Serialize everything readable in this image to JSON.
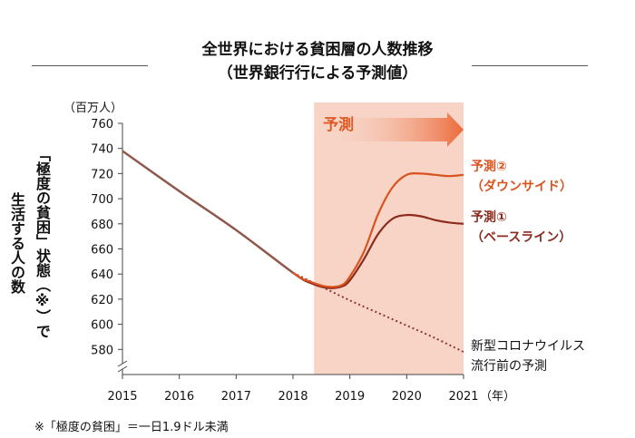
{
  "chart_data": {
    "type": "line",
    "title": "全世界における貧困層の人数推移",
    "subtitle": "（世界銀行行による予測値）",
    "ylabel_line1": "「極度の貧困」状態（※）で",
    "ylabel_line2": "生活する人の数",
    "yunit": "（百万人）",
    "xunit": "（年）",
    "ylim": [
      560,
      760
    ],
    "yticks": [
      580,
      600,
      620,
      640,
      660,
      680,
      700,
      720,
      740,
      760
    ],
    "xlim": [
      2015,
      2021
    ],
    "xticks": [
      2015,
      2016,
      2017,
      2018,
      2019,
      2020,
      2021
    ],
    "forecast_band": {
      "start": 2018.37,
      "end": 2021,
      "label": "予測"
    },
    "series": [
      {
        "name_line1": "予測②",
        "name_line2": "（ダウンサイド）",
        "color": "#d9531e",
        "style": "solid",
        "x": [
          2015,
          2016,
          2017,
          2018,
          2018.3,
          2018.6,
          2018.85,
          2019,
          2019.25,
          2019.5,
          2019.75,
          2020,
          2020.25,
          2020.5,
          2020.75,
          2021
        ],
        "y": [
          738,
          706,
          675,
          641,
          634,
          630,
          631,
          638,
          658,
          688,
          709,
          719,
          720,
          719,
          718,
          719
        ]
      },
      {
        "name_line1": "予測①",
        "name_line2": "（ベースライン）",
        "color": "#8b2a1d",
        "style": "solid",
        "x": [
          2015,
          2016,
          2017,
          2018,
          2018.3,
          2018.6,
          2018.85,
          2019,
          2019.25,
          2019.5,
          2019.75,
          2020,
          2020.25,
          2020.5,
          2020.75,
          2021
        ],
        "y": [
          738,
          706,
          675,
          641,
          633,
          629,
          630,
          635,
          652,
          672,
          684,
          687,
          686,
          683,
          681,
          680
        ]
      },
      {
        "name_line1": "新型コロナウイルス",
        "name_line2": "流行前の予測",
        "color": "#8b3a2a",
        "style": "dotted",
        "x": [
          2018,
          2018.5,
          2019,
          2019.5,
          2020,
          2020.5,
          2021
        ],
        "y": [
          641,
          630,
          619,
          609,
          599,
          589,
          578
        ]
      }
    ],
    "footnote": "※「極度の貧困」＝一日1.9ドル未満"
  }
}
